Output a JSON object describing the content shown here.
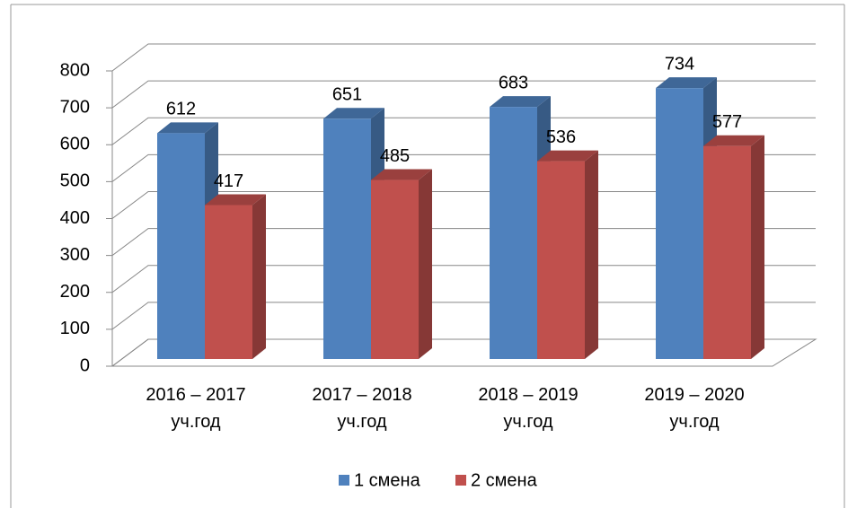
{
  "chart_data": {
    "type": "bar3d",
    "categories": [
      "2016 – 2017 уч.год",
      "2017 – 2018 уч.год",
      "2018 – 2019 уч.год",
      "2019 – 2020 уч.год"
    ],
    "series": [
      {
        "name": "1 смена",
        "color": "#4f81bd",
        "values": [
          612,
          651,
          683,
          734
        ]
      },
      {
        "name": "2 смена",
        "color": "#c0504d",
        "values": [
          417,
          485,
          536,
          577
        ]
      }
    ],
    "ylim": [
      0,
      800
    ],
    "yticks": [
      0,
      100,
      200,
      300,
      400,
      500,
      600,
      700,
      800
    ],
    "grid": true,
    "legend": "bottom"
  }
}
